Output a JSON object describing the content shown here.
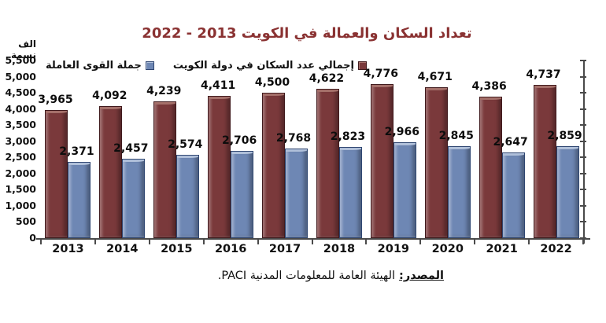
{
  "title": "تعداد السكان والعمالة  في الكويت 2013 - 2022",
  "y_axis_unit": "الف نسمة",
  "legend": [
    {
      "label": "جملة القوى العاملة",
      "series": "labor"
    },
    {
      "label": "إجمالي عدد السكان في دولة الكويت",
      "series": "population"
    }
  ],
  "source": {
    "prefix": "المصدر:",
    "text": "الهيئة العامة للمعلومات المدنية PACI."
  },
  "colors": {
    "title": "#8a3232",
    "axis": "#4a4a4a",
    "population_bar": "#7a393b",
    "population_bar_light": "#a5706a",
    "population_bar_dark": "#401a1d",
    "labor_bar": "#6e87b4",
    "labor_bar_light": "#b0c0da",
    "labor_bar_dark": "#2f4671"
  },
  "chart_data": {
    "type": "bar",
    "categories": [
      "2013",
      "2014",
      "2015",
      "2016",
      "2017",
      "2018",
      "2019",
      "2020",
      "2021",
      "2022"
    ],
    "series": [
      {
        "name": "إجمالي عدد السكان في دولة الكويت",
        "key": "population",
        "color": "#7a393b",
        "values": [
          3965,
          4092,
          4239,
          4411,
          4500,
          4622,
          4776,
          4671,
          4386,
          4737
        ]
      },
      {
        "name": "جملة القوى العاملة",
        "key": "labor",
        "color": "#6e87b4",
        "values": [
          2371,
          2457,
          2574,
          2706,
          2768,
          2823,
          2966,
          2845,
          2647,
          2859
        ]
      }
    ],
    "ylim": [
      0,
      5500
    ],
    "ytick_step": 500,
    "yticks": [
      "5,500",
      "5,000",
      "4,500",
      "4,000",
      "3,500",
      "3,000",
      "2,500",
      "2,000",
      "1,500",
      "1,000",
      "500",
      "0"
    ],
    "grid": false,
    "legend_position": "top-left",
    "value_labels": true,
    "xlabel": "",
    "ylabel": "الف نسمة"
  }
}
